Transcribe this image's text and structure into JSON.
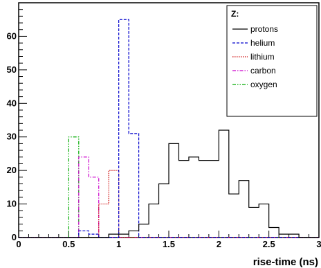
{
  "chart_data": {
    "type": "histogram",
    "xlabel": "rise-time (ns)",
    "ylabel": "",
    "xlim": [
      0,
      3
    ],
    "ylim": [
      0,
      70
    ],
    "bin_width": 0.1,
    "x_ticks": [
      "0",
      "0.5",
      "1",
      "1.5",
      "2",
      "2.5",
      "3"
    ],
    "y_ticks": [
      "0",
      "10",
      "20",
      "30",
      "40",
      "50",
      "60"
    ],
    "legend": {
      "title": "Z:",
      "placement": "top-right"
    },
    "series": [
      {
        "name": "protons",
        "color": "#000000",
        "dash": "solid",
        "bin_starts": [
          0.9,
          1.0,
          1.1,
          1.2,
          1.3,
          1.4,
          1.5,
          1.6,
          1.7,
          1.8,
          1.9,
          2.0,
          2.1,
          2.2,
          2.3,
          2.4,
          2.5,
          2.6,
          2.7
        ],
        "counts": [
          1,
          1,
          2,
          4,
          10,
          16,
          28,
          23,
          24,
          23,
          23,
          32,
          13,
          17,
          9,
          10,
          3,
          1,
          1
        ]
      },
      {
        "name": "helium",
        "color": "#0000cc",
        "dash": "dashed",
        "bin_starts": [
          0.6,
          0.7,
          1.0,
          1.1
        ],
        "counts": [
          2,
          1,
          65,
          31
        ]
      },
      {
        "name": "lithium",
        "color": "#cc0000",
        "dash": "dotted",
        "bin_starts": [
          0.8,
          0.9
        ],
        "counts": [
          10,
          20
        ]
      },
      {
        "name": "carbon",
        "color": "#cc00cc",
        "dash": "dash-dot",
        "bin_starts": [
          0.6,
          0.7
        ],
        "counts": [
          24,
          18
        ]
      },
      {
        "name": "oxygen",
        "color": "#00aa00",
        "dash": "dash-dot-dot",
        "bin_starts": [
          0.5
        ],
        "counts": [
          30
        ]
      }
    ]
  }
}
